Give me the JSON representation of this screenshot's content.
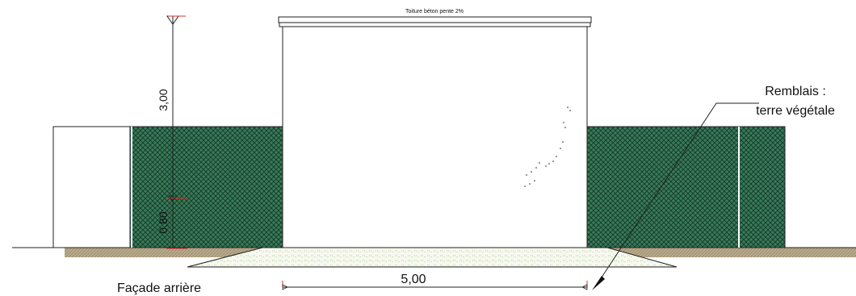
{
  "roof_label": "Toiture béton pente 2%",
  "dim_height_top": "3,00",
  "dim_height_bottom": "0,80",
  "dim_width": "5,00",
  "callout_line1": "Remblais :",
  "callout_line2": "terre végétale",
  "view_title": "Façade arrière",
  "colors": {
    "hatch_fill": "#2f6b4f",
    "embankment_dots": "#8fbf72",
    "ground": "#b7a98a",
    "dimension_tick": "#d0302a"
  }
}
